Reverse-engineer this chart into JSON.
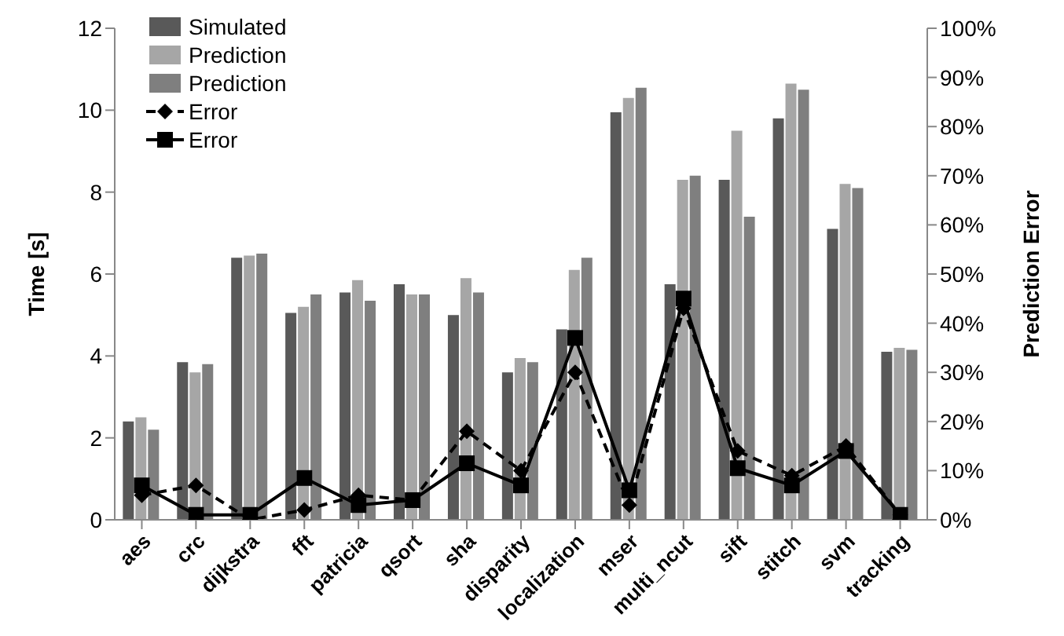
{
  "chart_data": {
    "type": "bar",
    "categories": [
      "aes",
      "crc",
      "dijkstra",
      "fft",
      "patricia",
      "qsort",
      "sha",
      "disparity",
      "localization",
      "mser",
      "multi_ncut",
      "sift",
      "stitch",
      "svm",
      "tracking"
    ],
    "ylabel": "Time [s]",
    "y2label": "Prediction Error",
    "ylim": [
      0,
      12
    ],
    "yticks": [
      0,
      2,
      4,
      6,
      8,
      10,
      12
    ],
    "y2lim": [
      0,
      100
    ],
    "y2ticks": [
      {
        "value": 0,
        "label": "0%"
      },
      {
        "value": 10,
        "label": "10%"
      },
      {
        "value": 20,
        "label": "20%"
      },
      {
        "value": 30,
        "label": "30%"
      },
      {
        "value": 40,
        "label": "40%"
      },
      {
        "value": 50,
        "label": "50%"
      },
      {
        "value": 60,
        "label": "60%"
      },
      {
        "value": 70,
        "label": "70%"
      },
      {
        "value": 80,
        "label": "80%"
      },
      {
        "value": 90,
        "label": "90%"
      },
      {
        "value": 100,
        "label": "100%"
      }
    ],
    "grid": false,
    "legend": "top left",
    "series": [
      {
        "name": "Simulated",
        "color": "#595959",
        "values": [
          2.4,
          3.85,
          6.4,
          5.05,
          5.55,
          5.75,
          5.0,
          3.6,
          4.65,
          9.95,
          5.75,
          8.3,
          9.8,
          7.1,
          4.1
        ]
      },
      {
        "name": "Prediction",
        "color": "#a6a6a6",
        "values": [
          2.5,
          3.6,
          6.45,
          5.2,
          5.85,
          5.5,
          5.9,
          3.95,
          6.1,
          10.3,
          8.3,
          9.5,
          10.65,
          8.2,
          4.2
        ]
      },
      {
        "name": "Prediction",
        "color": "#7f7f7f",
        "values": [
          2.2,
          3.8,
          6.5,
          5.5,
          5.35,
          5.5,
          5.55,
          3.85,
          6.4,
          10.55,
          8.4,
          7.4,
          10.5,
          8.1,
          4.15
        ]
      },
      {
        "name": "Error",
        "type": "line",
        "axis": "y2",
        "color": "#000000",
        "line_style": "dashed",
        "marker": "diamond",
        "values": [
          5,
          7,
          0,
          2,
          5,
          4,
          18,
          10,
          30,
          3,
          43,
          14,
          9,
          15,
          1
        ]
      },
      {
        "name": "Error",
        "type": "line",
        "axis": "y2",
        "color": "#000000",
        "line_style": "solid",
        "marker": "square",
        "values": [
          7,
          1,
          1,
          8.5,
          3,
          4,
          11.5,
          7,
          37,
          6,
          45,
          10.5,
          7,
          14,
          1
        ]
      }
    ]
  }
}
